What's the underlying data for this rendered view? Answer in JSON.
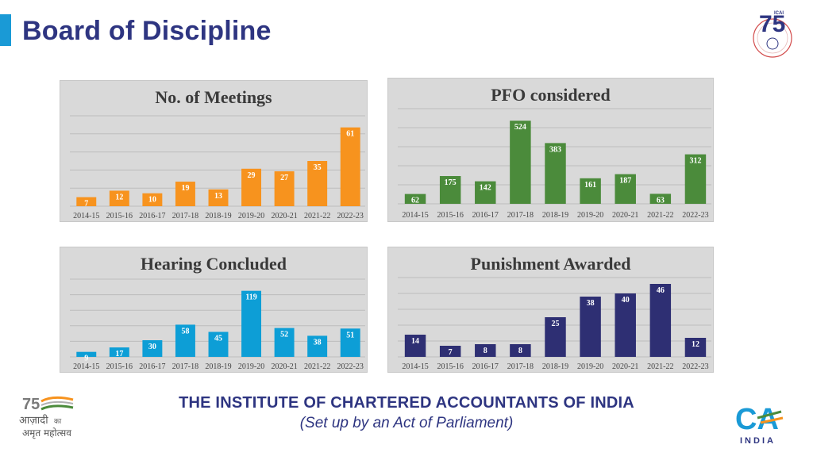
{
  "page": {
    "title": "Board of Discipline",
    "footer_title": "THE INSTITUTE OF CHARTERED ACCOUNTANTS OF INDIA",
    "footer_subtitle": "(Set up by an Act of Parliament)"
  },
  "logos": {
    "top_right": "75",
    "bottom_left_line1": "आज़ादी",
    "bottom_left_line2": "अमृत महोत्सव",
    "bottom_left_small": "का",
    "bottom_right_top": "CA",
    "bottom_right_bottom": "INDIA",
    "top_right_small": "ICAI"
  },
  "chart_data": [
    {
      "type": "bar",
      "title": "No. of Meetings",
      "categories": [
        "2014-15",
        "2015-16",
        "2016-17",
        "2017-18",
        "2018-19",
        "2019-20",
        "2020-21",
        "2021-22",
        "2022-23"
      ],
      "values": [
        7,
        12,
        10,
        19,
        13,
        29,
        27,
        35,
        61
      ],
      "color": "#f7931e",
      "ylim": [
        0,
        70
      ],
      "grid": true,
      "data_labels": true
    },
    {
      "type": "bar",
      "title": "PFO considered",
      "categories": [
        "2014-15",
        "2015-16",
        "2016-17",
        "2017-18",
        "2018-19",
        "2019-20",
        "2020-21",
        "2021-22",
        "2022-23"
      ],
      "values": [
        62,
        175,
        142,
        524,
        383,
        161,
        187,
        63,
        312
      ],
      "color": "#4b8b3b",
      "ylim": [
        0,
        600
      ],
      "grid": true,
      "data_labels": true
    },
    {
      "type": "bar",
      "title": "Hearing Concluded",
      "categories": [
        "2014-15",
        "2015-16",
        "2016-17",
        "2017-18",
        "2018-19",
        "2019-20",
        "2020-21",
        "2021-22",
        "2022-23"
      ],
      "values": [
        9,
        17,
        30,
        58,
        45,
        119,
        52,
        38,
        51
      ],
      "color": "#0d9ed6",
      "ylim": [
        0,
        140
      ],
      "grid": true,
      "data_labels": true
    },
    {
      "type": "bar",
      "title": "Punishment Awarded",
      "categories": [
        "2014-15",
        "2015-16",
        "2016-17",
        "2017-18",
        "2018-19",
        "2019-20",
        "2020-21",
        "2021-22",
        "2022-23"
      ],
      "values": [
        14,
        7,
        8,
        8,
        25,
        38,
        40,
        46,
        12
      ],
      "color": "#2e2f73",
      "ylim": [
        0,
        50
      ],
      "grid": true,
      "data_labels": true
    }
  ]
}
